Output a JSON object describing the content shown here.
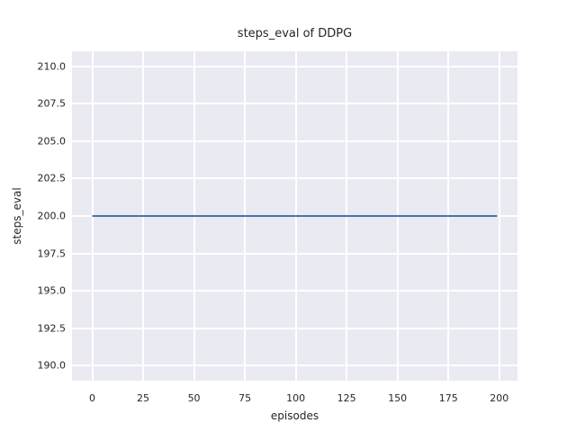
{
  "chart_data": {
    "type": "line",
    "title": "steps_eval of DDPG",
    "xlabel": "episodes",
    "ylabel": "steps_eval",
    "x_ticks": [
      0,
      25,
      50,
      75,
      100,
      125,
      150,
      175,
      200
    ],
    "x_tick_labels": [
      "0",
      "25",
      "50",
      "75",
      "100",
      "125",
      "150",
      "175",
      "200"
    ],
    "y_ticks": [
      190.0,
      192.5,
      195.0,
      197.5,
      200.0,
      202.5,
      205.0,
      207.5,
      210.0
    ],
    "y_tick_labels": [
      "190.0",
      "192.5",
      "195.0",
      "197.5",
      "200.0",
      "202.5",
      "205.0",
      "207.5",
      "210.0"
    ],
    "xlim": [
      -9.95,
      208.95
    ],
    "ylim": [
      189,
      211
    ],
    "grid": true,
    "legend": "none",
    "series": [
      {
        "name": "DDPG",
        "x": [
          0,
          199
        ],
        "y": [
          200,
          200
        ],
        "color": "#4C72B0",
        "linewidth": 2
      }
    ],
    "colors": {
      "figure_bg": "#FFFFFF",
      "plot_bg": "#EAEAF2",
      "grid": "#FFFFFF",
      "text": "#262626"
    }
  }
}
